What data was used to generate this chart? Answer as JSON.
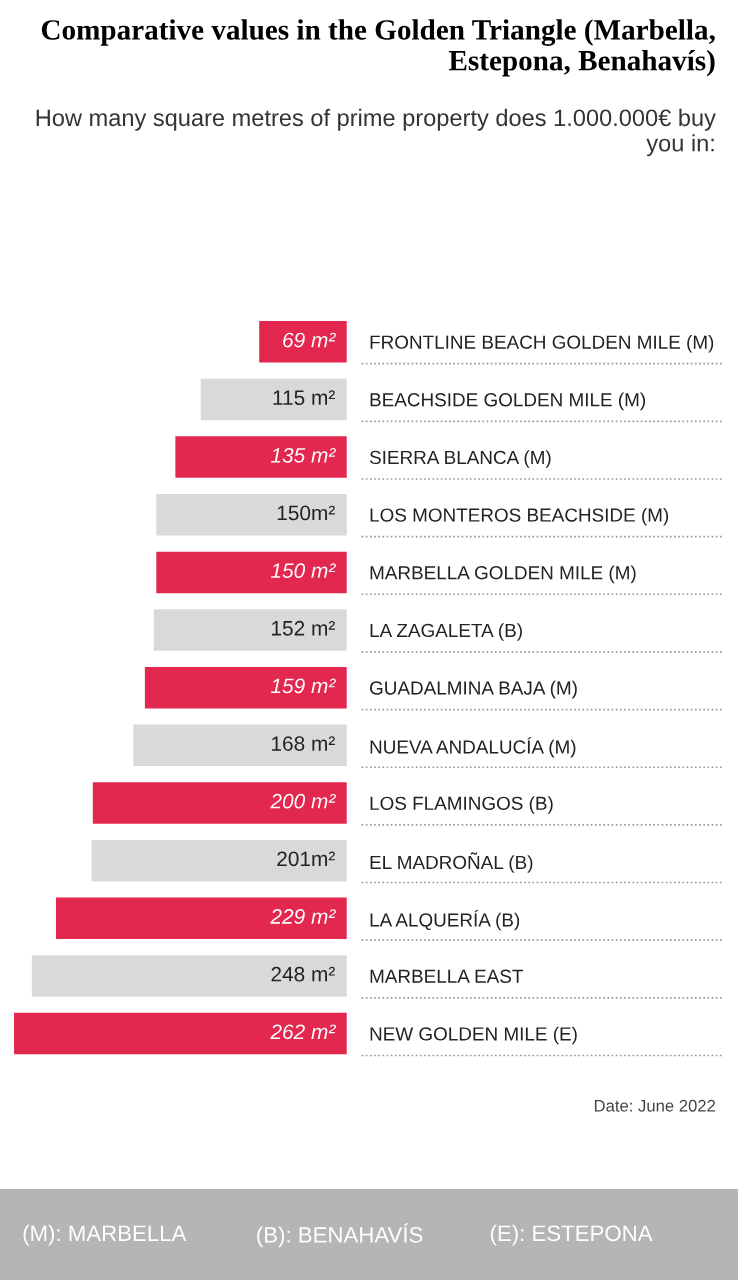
{
  "chart_data": {
    "type": "bar",
    "orientation": "horizontal",
    "title": "Comparative values in the Golden Triangle (Marbella, Estepona, Benahavís)",
    "subtitle": "How many square metres of prime property does 1.000.000€ buy you in:",
    "categories": [
      "FRONTLINE BEACH GOLDEN MILE (M)",
      "BEACHSIDE GOLDEN MILE (M)",
      "SIERRA BLANCA (M)",
      "LOS MONTEROS BEACHSIDE (M)",
      "MARBELLA GOLDEN MILE (M)",
      "LA ZAGALETA (B)",
      "GUADALMINA BAJA (M)",
      "NUEVA ANDALUCÍA (M)",
      "LOS FLAMINGOS (B)",
      "EL MADROÑAL (B)",
      "LA ALQUERÍA (B)",
      "MARBELLA EAST",
      "NEW GOLDEN MILE (E)"
    ],
    "values": [
      69,
      115,
      135,
      150,
      150,
      152,
      159,
      168,
      200,
      201,
      229,
      248,
      262
    ],
    "value_labels": [
      "69 m²",
      "115 m²",
      "135 m²",
      "150m²",
      "150 m²",
      "152 m²",
      "159 m²",
      "168 m²",
      "200 m²",
      "201m²",
      "229 m²",
      "248 m²",
      "262 m²"
    ],
    "colors": [
      "#e3284f",
      "#d9d9d9",
      "#e3284f",
      "#d9d9d9",
      "#e3284f",
      "#d9d9d9",
      "#e3284f",
      "#d9d9d9",
      "#e3284f",
      "#d9d9d9",
      "#e3284f",
      "#d9d9d9",
      "#e3284f"
    ],
    "tick_labels": "y",
    "grid": false,
    "legend": false,
    "annotations": [
      "Date: June 2022",
      "(M): MARBELLA",
      "(B): BENAHAVÍS",
      "(E): ESTEPONA"
    ]
  }
}
